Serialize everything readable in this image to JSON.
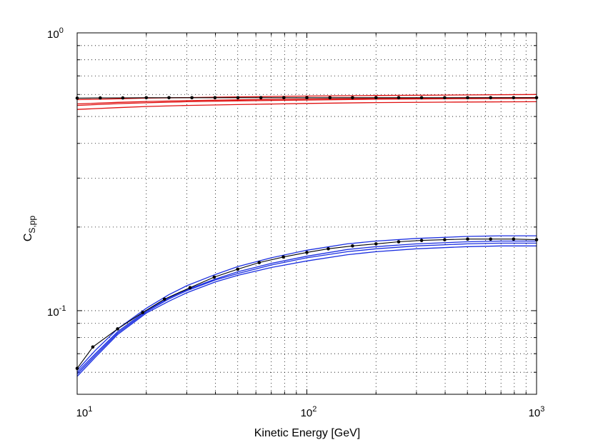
{
  "chart_data": {
    "type": "line",
    "title": "",
    "xlabel": "Kinetic Energy [GeV]",
    "ylabel_main": "C",
    "ylabel_sub": "S,pp",
    "x_scale": "log",
    "y_scale": "log",
    "xlim": [
      10,
      1000
    ],
    "ylim": [
      0.05,
      1
    ],
    "grid": true,
    "x_tick_labels": [
      {
        "base": "10",
        "exp": "1",
        "value": 10
      },
      {
        "base": "10",
        "exp": "2",
        "value": 100
      },
      {
        "base": "10",
        "exp": "3",
        "value": 1000
      }
    ],
    "y_tick_labels": [
      {
        "base": "10",
        "exp": "-1",
        "value": 0.1
      },
      {
        "base": "10",
        "exp": "0",
        "value": 1
      }
    ],
    "colors": {
      "red": "#e01010",
      "blue": "#1a2ee0",
      "black": "#000000",
      "grid": "#000000"
    },
    "series": [
      {
        "group": "upper",
        "color": "black",
        "markers": true,
        "x": [
          10,
          12.6,
          15.8,
          20,
          25.1,
          31.6,
          39.8,
          50.1,
          63.1,
          79.4,
          100,
          126,
          158,
          200,
          251,
          316,
          398,
          501,
          631,
          794,
          1000
        ],
        "y": [
          0.582,
          0.583,
          0.583,
          0.584,
          0.584,
          0.584,
          0.584,
          0.584,
          0.584,
          0.584,
          0.584,
          0.584,
          0.584,
          0.584,
          0.584,
          0.584,
          0.584,
          0.584,
          0.584,
          0.584,
          0.584
        ]
      },
      {
        "group": "upper",
        "color": "red",
        "markers": false,
        "x": [
          10,
          15,
          20,
          30,
          50,
          100,
          200,
          400,
          1000
        ],
        "y": [
          0.575,
          0.579,
          0.582,
          0.585,
          0.588,
          0.592,
          0.595,
          0.597,
          0.6
        ]
      },
      {
        "group": "upper",
        "color": "red",
        "markers": false,
        "x": [
          10,
          15,
          20,
          30,
          50,
          100,
          200,
          400,
          1000
        ],
        "y": [
          0.555,
          0.562,
          0.566,
          0.57,
          0.574,
          0.578,
          0.581,
          0.583,
          0.585
        ]
      },
      {
        "group": "upper",
        "color": "red",
        "markers": false,
        "x": [
          10,
          15,
          20,
          30,
          50,
          100,
          200,
          400,
          1000
        ],
        "y": [
          0.548,
          0.556,
          0.56,
          0.565,
          0.569,
          0.573,
          0.577,
          0.579,
          0.581
        ]
      },
      {
        "group": "upper",
        "color": "red",
        "markers": false,
        "x": [
          10,
          15,
          20,
          30,
          50,
          100,
          200,
          400,
          1000
        ],
        "y": [
          0.53,
          0.538,
          0.543,
          0.548,
          0.552,
          0.557,
          0.561,
          0.563,
          0.565
        ]
      },
      {
        "group": "lower",
        "color": "black",
        "markers": true,
        "x": [
          10,
          11.7,
          15,
          19.3,
          24,
          31,
          39.5,
          50,
          62,
          79,
          100,
          124,
          158,
          200,
          251,
          316,
          398,
          501,
          631,
          794,
          1000
        ],
        "y": [
          0.062,
          0.074,
          0.086,
          0.0985,
          0.11,
          0.121,
          0.132,
          0.141,
          0.149,
          0.156,
          0.162,
          0.167,
          0.171,
          0.174,
          0.177,
          0.179,
          0.18,
          0.181,
          0.181,
          0.181,
          0.18
        ]
      },
      {
        "group": "lower",
        "color": "blue",
        "markers": false,
        "x": [
          10,
          12,
          15,
          20,
          25,
          30,
          40,
          50,
          70,
          100,
          150,
          200,
          300,
          500,
          700,
          1000
        ],
        "y": [
          0.06,
          0.07,
          0.084,
          0.1,
          0.111,
          0.119,
          0.13,
          0.138,
          0.148,
          0.157,
          0.166,
          0.17,
          0.174,
          0.177,
          0.178,
          0.178
        ]
      },
      {
        "group": "lower",
        "color": "blue",
        "markers": false,
        "x": [
          10,
          12,
          15,
          20,
          25,
          30,
          40,
          50,
          70,
          100,
          150,
          200,
          300,
          500,
          700,
          1000
        ],
        "y": [
          0.059,
          0.069,
          0.083,
          0.099,
          0.11,
          0.118,
          0.129,
          0.136,
          0.146,
          0.155,
          0.163,
          0.167,
          0.171,
          0.174,
          0.175,
          0.175
        ]
      },
      {
        "group": "lower",
        "color": "blue",
        "markers": false,
        "x": [
          10,
          12,
          15,
          20,
          25,
          30,
          40,
          50,
          70,
          100,
          150,
          200,
          300,
          500,
          700,
          1000
        ],
        "y": [
          0.061,
          0.072,
          0.086,
          0.102,
          0.114,
          0.123,
          0.135,
          0.144,
          0.155,
          0.165,
          0.174,
          0.178,
          0.182,
          0.185,
          0.186,
          0.186
        ]
      },
      {
        "group": "lower",
        "color": "blue",
        "markers": false,
        "x": [
          10,
          12,
          15,
          20,
          25,
          30,
          40,
          50,
          70,
          100,
          150,
          200,
          300,
          500,
          700,
          1000
        ],
        "y": [
          0.058,
          0.068,
          0.082,
          0.098,
          0.108,
          0.116,
          0.127,
          0.134,
          0.143,
          0.151,
          0.159,
          0.163,
          0.167,
          0.17,
          0.171,
          0.171
        ]
      }
    ]
  }
}
